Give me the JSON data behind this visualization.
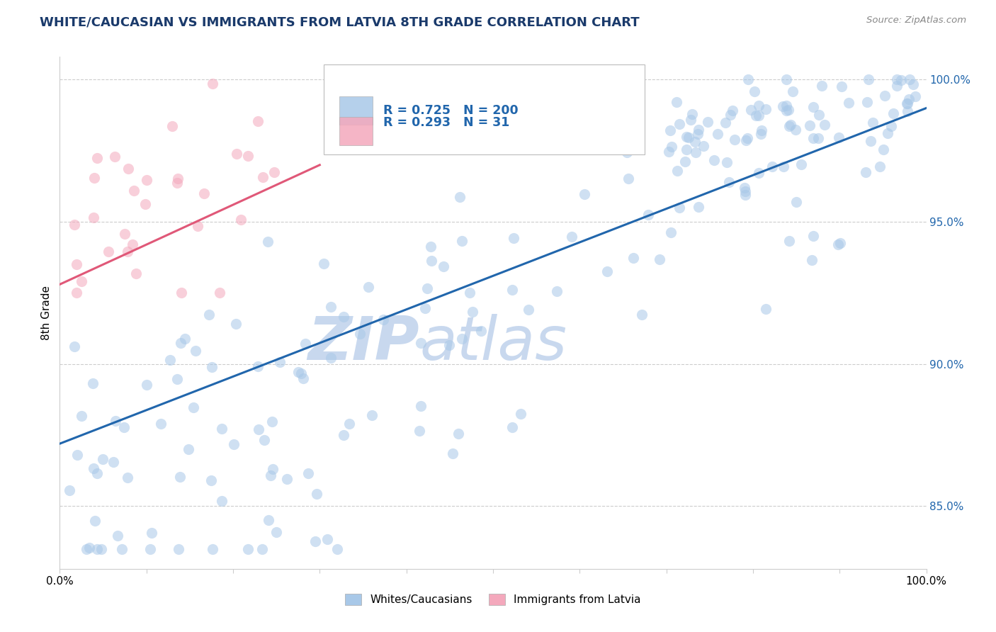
{
  "title": "WHITE/CAUCASIAN VS IMMIGRANTS FROM LATVIA 8TH GRADE CORRELATION CHART",
  "source": "Source: ZipAtlas.com",
  "ylabel": "8th Grade",
  "ytick_labels": [
    "85.0%",
    "90.0%",
    "95.0%",
    "100.0%"
  ],
  "ytick_values": [
    0.85,
    0.9,
    0.95,
    1.0
  ],
  "xlim": [
    0.0,
    1.0
  ],
  "ylim": [
    0.828,
    1.008
  ],
  "legend_blue_r": "0.725",
  "legend_blue_n": "200",
  "legend_pink_r": "0.293",
  "legend_pink_n": "31",
  "legend_label_blue": "Whites/Caucasians",
  "legend_label_pink": "Immigrants from Latvia",
  "blue_color": "#a8c8e8",
  "pink_color": "#f4a8bc",
  "blue_line_color": "#2166ac",
  "pink_line_color": "#e05878",
  "title_color": "#1a3a6b",
  "source_color": "#888888",
  "legend_r_n_color": "#2166ac",
  "watermark_zip": "ZIP",
  "watermark_atlas": "atlas",
  "watermark_color": "#c8d8ee",
  "blue_trend_x": [
    0.0,
    1.0
  ],
  "blue_trend_y": [
    0.872,
    0.99
  ],
  "pink_trend_x": [
    0.0,
    0.3
  ],
  "pink_trend_y": [
    0.928,
    0.97
  ]
}
